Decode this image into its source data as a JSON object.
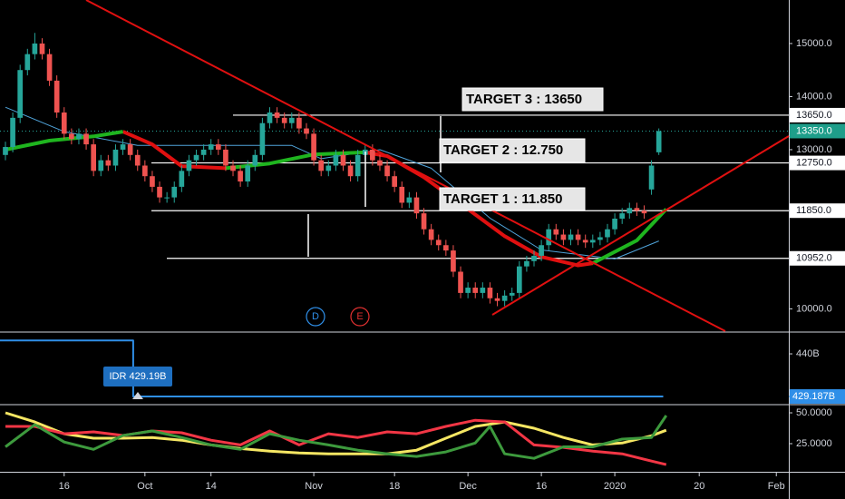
{
  "chart_data": [
    {
      "type": "candlestick",
      "up_color": "#26a69a",
      "down_color": "#ef5350",
      "open": [
        12900,
        13050,
        13600,
        14500,
        14800,
        15000,
        14800,
        14300,
        13700,
        13300,
        13200,
        13300,
        13100,
        12600,
        12800,
        12700,
        13000,
        13100,
        12900,
        12700,
        12500,
        12300,
        12100,
        12100,
        12300,
        12600,
        12800,
        12900,
        13000,
        13100,
        13000,
        12700,
        12600,
        12400,
        12700,
        12900,
        13500,
        13700,
        13600,
        13500,
        13600,
        13400,
        13300,
        12800,
        12600,
        12700,
        12900,
        12700,
        12500,
        12900,
        13000,
        12800,
        12700,
        12500,
        12300,
        12000,
        12100,
        11800,
        11500,
        11300,
        11200,
        11100,
        10700,
        10300,
        10400,
        10300,
        10400,
        10200,
        10150,
        10250,
        10300,
        10800,
        10900,
        11000,
        11200,
        11500,
        11400,
        11300,
        11400,
        11300,
        11250,
        11300,
        11350,
        11500,
        11700,
        11800,
        11900,
        11850,
        12250,
        12950
      ],
      "high": [
        13150,
        13700,
        14600,
        14900,
        15200,
        15100,
        14900,
        14400,
        13800,
        13400,
        13400,
        13400,
        13200,
        12900,
        12900,
        13100,
        13200,
        13200,
        13000,
        12800,
        12600,
        12400,
        12200,
        12400,
        12700,
        12900,
        13000,
        13100,
        13200,
        13200,
        13100,
        12800,
        12700,
        12800,
        13000,
        13600,
        13800,
        13800,
        13700,
        13700,
        13700,
        13500,
        13400,
        12900,
        12800,
        13000,
        13000,
        12800,
        13000,
        13100,
        13100,
        12900,
        12800,
        12600,
        12400,
        12200,
        12200,
        11900,
        11600,
        11400,
        11300,
        11200,
        10800,
        10500,
        10500,
        10500,
        10500,
        10300,
        10350,
        10400,
        10900,
        11000,
        11100,
        11300,
        11600,
        11600,
        11500,
        11500,
        11500,
        11400,
        11400,
        11450,
        11600,
        11800,
        11900,
        12000,
        12000,
        11950,
        12800,
        13400
      ],
      "low": [
        12800,
        12950,
        13500,
        14400,
        14700,
        14700,
        14200,
        13600,
        13200,
        13100,
        13100,
        13000,
        12500,
        12500,
        12600,
        12600,
        12900,
        12800,
        12600,
        12400,
        12200,
        12000,
        12000,
        12000,
        12200,
        12500,
        12700,
        12800,
        12900,
        12900,
        12600,
        12500,
        12300,
        12300,
        12600,
        12800,
        13400,
        13500,
        13400,
        13400,
        13300,
        13200,
        12700,
        12500,
        12500,
        12600,
        12600,
        12400,
        12400,
        12800,
        12700,
        12600,
        12400,
        12200,
        11900,
        11900,
        11700,
        11400,
        11200,
        11100,
        11000,
        10600,
        10200,
        10200,
        10200,
        10200,
        10100,
        10050,
        10050,
        10150,
        10200,
        10700,
        10800,
        10900,
        11100,
        11300,
        11200,
        11200,
        11200,
        11150,
        11150,
        11200,
        11250,
        11400,
        11600,
        11700,
        11750,
        11700,
        12150,
        12900
      ],
      "close": [
        13050,
        13600,
        14500,
        14800,
        15000,
        14800,
        14300,
        13700,
        13300,
        13200,
        13300,
        13100,
        12600,
        12800,
        12700,
        13000,
        13100,
        12900,
        12700,
        12500,
        12300,
        12100,
        12100,
        12300,
        12600,
        12800,
        12900,
        13000,
        13100,
        13000,
        12700,
        12600,
        12400,
        12700,
        12900,
        13500,
        13700,
        13600,
        13500,
        13600,
        13400,
        13300,
        12800,
        12600,
        12700,
        12900,
        12700,
        12500,
        12900,
        13000,
        12800,
        12700,
        12500,
        12300,
        12000,
        12100,
        11800,
        11500,
        11300,
        11200,
        11100,
        10700,
        10300,
        10400,
        10300,
        10400,
        10200,
        10150,
        10250,
        10300,
        10800,
        10900,
        11000,
        11200,
        11500,
        11400,
        11300,
        11400,
        11300,
        11250,
        11300,
        11350,
        11500,
        11700,
        11800,
        11900,
        11850,
        11800,
        12700,
        13350
      ],
      "series": [
        {
          "color": "#4fa3d9",
          "width": 1,
          "x": [
            0,
            8,
            18,
            28,
            39,
            43,
            51,
            58,
            66,
            73,
            83,
            89
          ],
          "values": [
            13800,
            13340,
            13080,
            13080,
            13080,
            12830,
            13000,
            12650,
            11710,
            11110,
            10940,
            11280
          ]
        },
        {
          "color": "#e01010",
          "width": 4,
          "x": [
            16,
            20,
            24,
            30,
            31,
            49,
            52,
            57,
            63,
            68,
            73,
            78,
            80
          ],
          "values": [
            13340,
            13100,
            12690,
            12650,
            null,
            12950,
            12880,
            12480,
            11880,
            11370,
            10980,
            10820,
            10860
          ]
        },
        {
          "color": "#1fb51f",
          "width": 4,
          "x": [
            0,
            6,
            12,
            16,
            17,
            30,
            36,
            42,
            49,
            50,
            80,
            86,
            90
          ],
          "values": [
            13000,
            13170,
            13250,
            13340,
            null,
            12650,
            12740,
            12910,
            12950,
            null,
            10860,
            11290,
            11880
          ]
        }
      ],
      "ylim": [
        9580,
        15820
      ],
      "yticks": [
        {
          "value": 10000,
          "label": "10000.0"
        },
        {
          "value": 13000,
          "label": "13000.0"
        },
        {
          "value": 14000,
          "label": "14000.0"
        },
        {
          "value": 15000,
          "label": "15000.0"
        }
      ],
      "levels": [
        {
          "value": 13650,
          "label": "13650.0"
        },
        {
          "value": 12750,
          "label": "12750.0"
        },
        {
          "value": 11850,
          "label": "11850.0"
        },
        {
          "value": 10952,
          "label": "10952.0"
        }
      ],
      "current": {
        "value": 13350,
        "label": "13350.0"
      },
      "annotations": [
        "TARGET 3 : 13650",
        "TARGET 2 : 12.750",
        "TARGET 1 : 11.850"
      ],
      "markers": [
        "D",
        "E"
      ],
      "xlim": [
        -0.74,
        106.7
      ],
      "xticks": [
        {
          "value": 8,
          "label": "16"
        },
        {
          "value": 19,
          "label": "Oct"
        },
        {
          "value": 28,
          "label": "14"
        },
        {
          "value": 42,
          "label": "Nov"
        },
        {
          "value": 53,
          "label": "18"
        },
        {
          "value": 63,
          "label": "Dec"
        },
        {
          "value": 73,
          "label": "16"
        },
        {
          "value": 83,
          "label": "2020"
        },
        {
          "value": 94.5,
          "label": "20"
        },
        {
          "value": 105,
          "label": "Feb"
        }
      ]
    },
    {
      "type": "line",
      "series": [
        {
          "color": "#2f8fe8",
          "width": 2,
          "x": [
            -0.74,
            17.4,
            17.4,
            89.6
          ],
          "values": [
            443.4,
            443.4,
            429.187,
            429.187
          ]
        }
      ],
      "ylim": [
        427.35,
        445.3
      ],
      "yticks": [
        {
          "value": 440,
          "label": "440B"
        }
      ],
      "last": {
        "value": 429.187,
        "label": "429.187B"
      },
      "tooltip": "IDR 429.19B",
      "xlim": [
        -0.74,
        106.7
      ]
    },
    {
      "type": "line",
      "series": [
        {
          "color": "#f5e663",
          "width": 3,
          "x": [
            0,
            4,
            8,
            12,
            16,
            20,
            24,
            28,
            32,
            36,
            40,
            44,
            48,
            52,
            56,
            60,
            64,
            68,
            72,
            76,
            80,
            84,
            88,
            90
          ],
          "values": [
            50,
            42.6,
            33,
            29.4,
            29.4,
            30,
            27.8,
            24,
            21,
            19,
            17.5,
            16.8,
            16.8,
            16.8,
            19.7,
            29.4,
            39,
            42.6,
            37.5,
            30,
            24,
            25.5,
            31.4,
            35.9
          ]
        },
        {
          "color": "#f23645",
          "width": 3,
          "x": [
            0,
            4,
            8,
            12,
            16,
            20,
            24,
            28,
            32,
            36,
            40,
            44,
            48,
            52,
            56,
            60,
            64,
            68,
            72,
            76,
            80,
            84,
            88,
            90
          ],
          "values": [
            39,
            39,
            33,
            34.6,
            31.6,
            35.3,
            33.8,
            27.8,
            24,
            35.3,
            24,
            33,
            30,
            34.6,
            33,
            39,
            44,
            42.6,
            24,
            22,
            19,
            16.8,
            10.9,
            8
          ]
        },
        {
          "color": "#3d9a3d",
          "width": 3,
          "x": [
            0,
            4,
            8,
            12,
            16,
            20,
            24,
            28,
            32,
            36,
            40,
            44,
            48,
            52,
            56,
            60,
            64,
            66,
            68,
            72,
            76,
            80,
            84,
            88,
            90
          ],
          "values": [
            22.4,
            40.4,
            26.3,
            20.4,
            31.6,
            35.3,
            30,
            24,
            20.4,
            33,
            27.8,
            24,
            19.7,
            16.8,
            14.6,
            18.3,
            25.5,
            39,
            16.8,
            13.1,
            22.4,
            22.4,
            28.7,
            30,
            47.8
          ]
        }
      ],
      "ylim": [
        2.2,
        55.9
      ],
      "yticks": [
        {
          "value": 50,
          "label": "50.0000"
        },
        {
          "value": 25,
          "label": "25.0000"
        }
      ],
      "xlim": [
        -0.74,
        106.7
      ]
    }
  ]
}
